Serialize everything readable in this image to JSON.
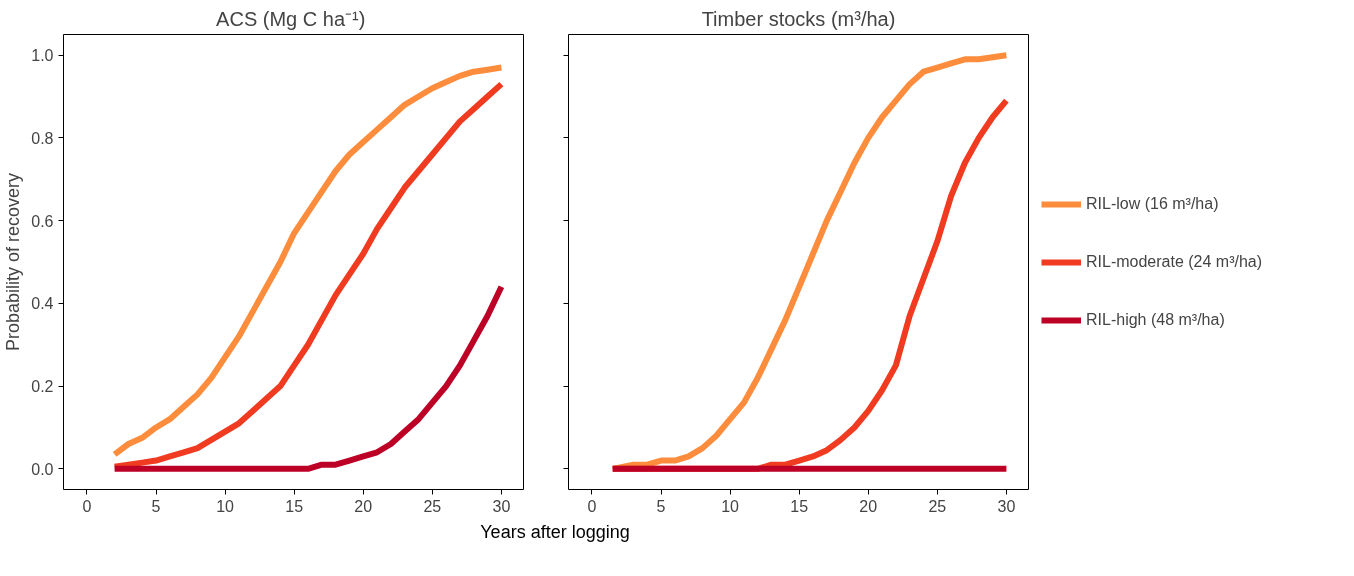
{
  "chart_data": [
    {
      "type": "line",
      "title": "ACS  (Mg C ha⁻¹)",
      "xlabel": "Years after logging",
      "ylabel": "Probability of recovery",
      "x": [
        2,
        3,
        4,
        5,
        6,
        7,
        8,
        9,
        10,
        11,
        12,
        13,
        14,
        15,
        16,
        17,
        18,
        19,
        20,
        21,
        22,
        23,
        24,
        25,
        26,
        27,
        28,
        29,
        30
      ],
      "xlim": [
        -1.7,
        31.6
      ],
      "ylim": [
        -0.05,
        1.05
      ],
      "xticks": [
        0,
        5,
        10,
        15,
        20,
        25,
        30
      ],
      "yticks": [
        {
          "value": 0,
          "label": "0.0"
        },
        0.2,
        0.4,
        0.6,
        0.8,
        {
          "value": 1,
          "label": "1.0"
        }
      ],
      "series": [
        {
          "color": "#fd8d3c",
          "values": [
            0.035,
            0.06,
            0.075,
            0.1,
            0.12,
            0.15,
            0.18,
            0.22,
            0.27,
            0.32,
            0.38,
            0.44,
            0.5,
            0.57,
            0.62,
            0.67,
            0.72,
            0.76,
            0.79,
            0.82,
            0.85,
            0.88,
            0.9,
            0.92,
            0.935,
            0.95,
            0.96,
            0.965,
            0.97
          ]
        },
        {
          "color": "#f03b20",
          "values": [
            0.005,
            0.01,
            0.015,
            0.02,
            0.03,
            0.04,
            0.05,
            0.07,
            0.09,
            0.11,
            0.14,
            0.17,
            0.2,
            0.25,
            0.3,
            0.36,
            0.42,
            0.47,
            0.52,
            0.58,
            0.63,
            0.68,
            0.72,
            0.76,
            0.8,
            0.84,
            0.87,
            0.9,
            0.93
          ]
        },
        {
          "color": "#bd0026",
          "values": [
            0,
            0,
            0,
            0,
            0,
            0,
            0,
            0,
            0,
            0,
            0,
            0,
            0,
            0,
            0,
            0.01,
            0.01,
            0.02,
            0.03,
            0.04,
            0.06,
            0.09,
            0.12,
            0.16,
            0.2,
            0.25,
            0.31,
            0.37,
            0.44
          ]
        }
      ]
    },
    {
      "type": "line",
      "title": "Timber stocks (m³/ha)",
      "legend": "right",
      "tick_labels": "x",
      "x": [
        1.5,
        3,
        4,
        5,
        6,
        7,
        8,
        9,
        10,
        11,
        12,
        13,
        14,
        15,
        16,
        17,
        18,
        19,
        20,
        21,
        22,
        23,
        24,
        25,
        26,
        27,
        28,
        29,
        30
      ],
      "xlim": [
        -1.7,
        31.6
      ],
      "ylim": [
        -0.05,
        1.05
      ],
      "xticks": [
        0,
        5,
        10,
        15,
        20,
        25,
        30
      ],
      "yticks": [
        0,
        0.2,
        0.4,
        0.6,
        0.8,
        1
      ],
      "series": [
        {
          "name": "RIL-low (16 m³/ha)",
          "color": "#fd8d3c",
          "values": [
            0,
            0.01,
            0.01,
            0.02,
            0.02,
            0.03,
            0.05,
            0.08,
            0.12,
            0.16,
            0.22,
            0.29,
            0.36,
            0.44,
            0.52,
            0.6,
            0.67,
            0.74,
            0.8,
            0.85,
            0.89,
            0.93,
            0.96,
            0.97,
            0.98,
            0.99,
            0.99,
            0.995,
            1.0
          ]
        },
        {
          "name": "RIL-moderate (24 m³/ha)",
          "color": "#f03b20",
          "values": [
            0,
            0,
            0,
            0,
            0,
            0,
            0,
            0,
            0,
            0,
            0,
            0.01,
            0.01,
            0.02,
            0.03,
            0.045,
            0.07,
            0.1,
            0.14,
            0.19,
            0.25,
            0.37,
            0.46,
            0.55,
            0.66,
            0.74,
            0.8,
            0.85,
            0.89
          ]
        },
        {
          "name": "RIL-high (48 m³/ha)",
          "color": "#bd0026",
          "values": [
            0,
            0,
            0,
            0,
            0,
            0,
            0,
            0,
            0,
            0,
            0,
            0,
            0,
            0,
            0,
            0,
            0,
            0,
            0,
            0,
            0,
            0,
            0,
            0,
            0,
            0,
            0,
            0,
            0
          ]
        }
      ]
    }
  ]
}
